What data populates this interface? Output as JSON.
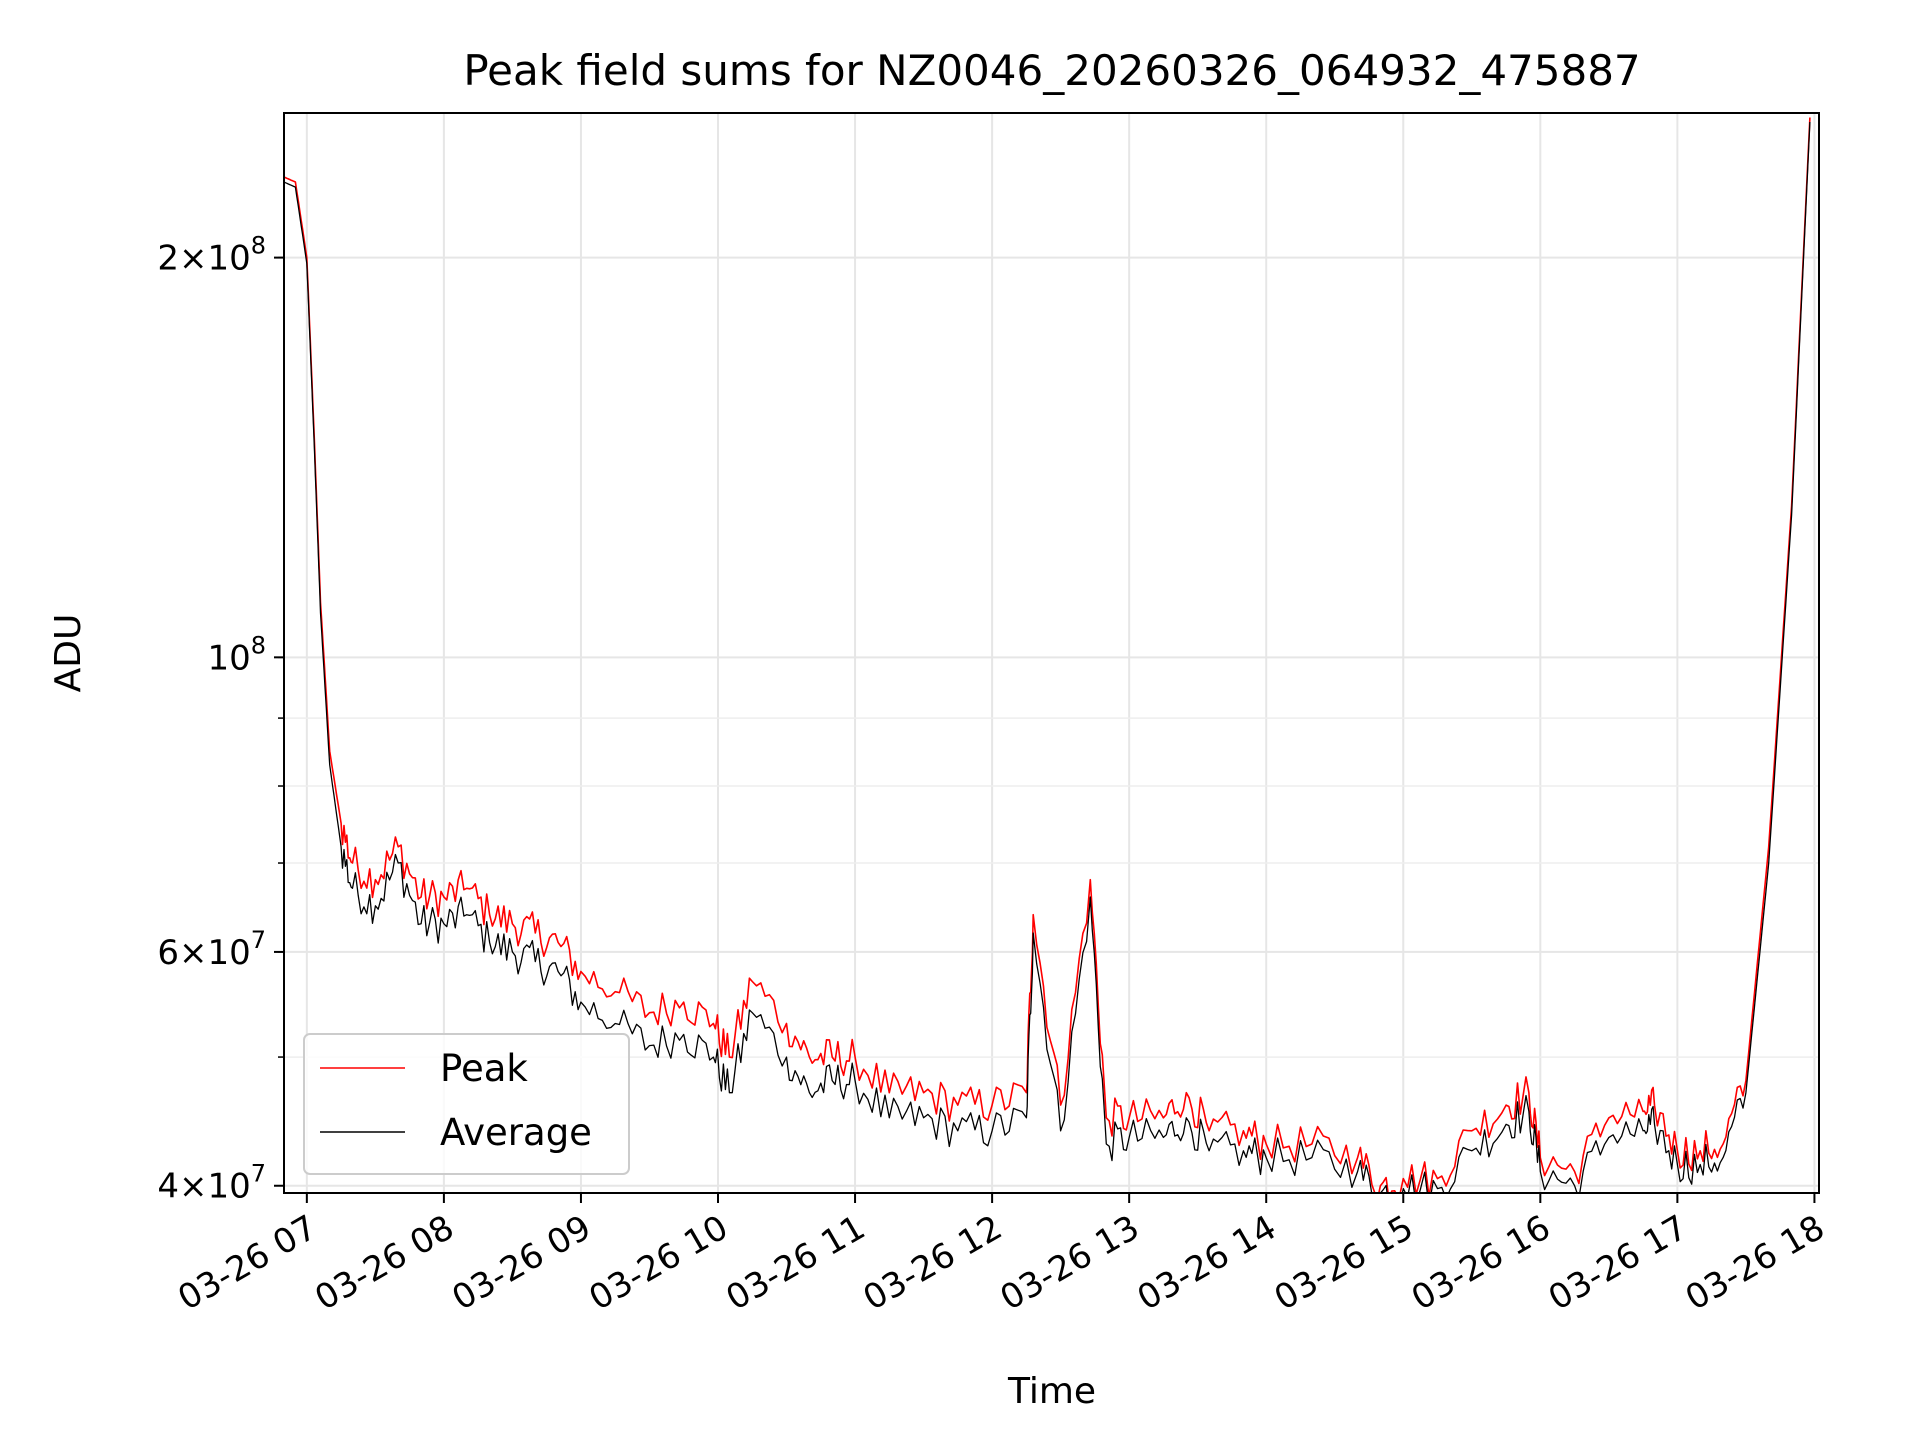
{
  "chart_data": {
    "type": "line",
    "title": "Peak field sums for NZ0046_20260326_064932_475887",
    "xlabel": "Time",
    "ylabel": "ADU",
    "yscale": "log",
    "ylim": [
      39500000,
      257000000
    ],
    "xlim": [
      "2026-03-26 06:50",
      "2026-03-26 18:02"
    ],
    "grid": true,
    "legend": {
      "placement": "lower-left",
      "entries": [
        "Peak",
        "Average"
      ]
    },
    "x_ticks": [
      "03-26 07",
      "03-26 08",
      "03-26 09",
      "03-26 10",
      "03-26 11",
      "03-26 12",
      "03-26 13",
      "03-26 14",
      "03-26 15",
      "03-26 16",
      "03-26 17",
      "03-26 18"
    ],
    "y_ticks": [
      {
        "value": 40000000,
        "mantissa": "4",
        "exponent": "7"
      },
      {
        "value": 60000000,
        "mantissa": "6",
        "exponent": "7"
      },
      {
        "value": 100000000,
        "mantissa": "",
        "exponent": "8"
      },
      {
        "value": 200000000,
        "mantissa": "2",
        "exponent": "8"
      }
    ],
    "x": [
      "2026-03-26 06:50",
      "2026-03-26 06:55",
      "2026-03-26 07:00",
      "2026-03-26 07:03",
      "2026-03-26 07:06",
      "2026-03-26 07:10",
      "2026-03-26 07:15",
      "2026-03-26 07:20",
      "2026-03-26 07:30",
      "2026-03-26 07:40",
      "2026-03-26 07:50",
      "2026-03-26 08:00",
      "2026-03-26 08:10",
      "2026-03-26 08:20",
      "2026-03-26 08:30",
      "2026-03-26 08:40",
      "2026-03-26 08:50",
      "2026-03-26 09:00",
      "2026-03-26 09:15",
      "2026-03-26 09:30",
      "2026-03-26 09:45",
      "2026-03-26 09:58",
      "2026-03-26 10:05",
      "2026-03-26 10:15",
      "2026-03-26 10:30",
      "2026-03-26 10:40",
      "2026-03-26 10:50",
      "2026-03-26 11:00",
      "2026-03-26 11:15",
      "2026-03-26 11:30",
      "2026-03-26 11:45",
      "2026-03-26 12:00",
      "2026-03-26 12:15",
      "2026-03-26 12:18",
      "2026-03-26 12:30",
      "2026-03-26 12:43",
      "2026-03-26 12:50",
      "2026-03-26 13:00",
      "2026-03-26 13:15",
      "2026-03-26 13:25",
      "2026-03-26 13:35",
      "2026-03-26 13:50",
      "2026-03-26 14:00",
      "2026-03-26 14:20",
      "2026-03-26 14:40",
      "2026-03-26 14:50",
      "2026-03-26 15:00",
      "2026-03-26 15:15",
      "2026-03-26 15:30",
      "2026-03-26 15:45",
      "2026-03-26 15:55",
      "2026-03-26 16:00",
      "2026-03-26 16:15",
      "2026-03-26 16:30",
      "2026-03-26 16:45",
      "2026-03-26 16:50",
      "2026-03-26 17:00",
      "2026-03-26 17:10",
      "2026-03-26 17:20",
      "2026-03-26 17:30",
      "2026-03-26 17:40",
      "2026-03-26 17:50",
      "2026-03-26 17:58"
    ],
    "series": [
      {
        "name": "Peak",
        "color": "#ff0000",
        "values": [
          230000000,
          228000000,
          200000000,
          150000000,
          110000000,
          85000000,
          75000000,
          70000000,
          68000000,
          72000000,
          66000000,
          66000000,
          67000000,
          64000000,
          63000000,
          62000000,
          61000000,
          58000000,
          56000000,
          54000000,
          55000000,
          53000000,
          50000000,
          57000000,
          53000000,
          50000000,
          50000000,
          50000000,
          47000000,
          47000000,
          46000000,
          46000000,
          47000000,
          64000000,
          46000000,
          68000000,
          45000000,
          45000000,
          45000000,
          47000000,
          44000000,
          44000000,
          43000000,
          43000000,
          42000000,
          40000000,
          40500000,
          40500000,
          44000000,
          46000000,
          47000000,
          42000000,
          41000000,
          45000000,
          45500000,
          46000000,
          42500000,
          42500000,
          43000000,
          48000000,
          72000000,
          130000000,
          255000000
        ]
      },
      {
        "name": "Average",
        "color": "#000000",
        "values": [
          228000000,
          226000000,
          198000000,
          148000000,
          108000000,
          83000000,
          72000000,
          67000000,
          65000000,
          70000000,
          63000000,
          63000000,
          64000000,
          61000000,
          60000000,
          59000000,
          58000000,
          55000000,
          53000000,
          51000000,
          52000000,
          50000000,
          47000000,
          54000000,
          50000000,
          47000000,
          48000000,
          48000000,
          45000000,
          45000000,
          44000000,
          44000000,
          45000000,
          62000000,
          44000000,
          66000000,
          43000000,
          43500000,
          43500000,
          45000000,
          42500000,
          42500000,
          42000000,
          42000000,
          41000000,
          39500000,
          39800000,
          39800000,
          42500000,
          44500000,
          45500000,
          41000000,
          40000000,
          43500000,
          44000000,
          44500000,
          41500000,
          41500000,
          42000000,
          47000000,
          70000000,
          128000000,
          253000000
        ]
      }
    ]
  }
}
